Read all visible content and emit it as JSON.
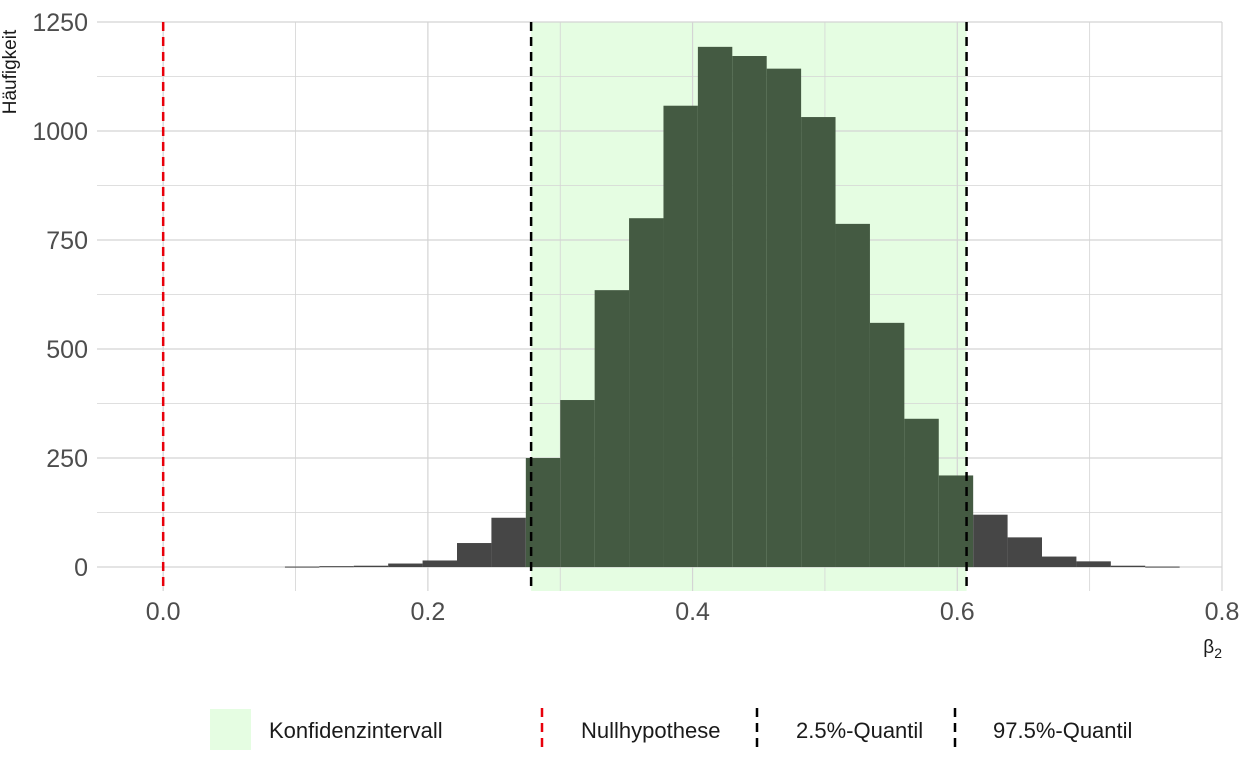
{
  "chart_data": {
    "type": "bar",
    "subtype": "histogram",
    "title": "",
    "xlabel": "β₂",
    "xlabel_base": "β",
    "xlabel_sub": "2",
    "ylabel": "Häufigkeit",
    "xlim": [
      -0.05,
      0.8
    ],
    "ylim": [
      -55,
      1250
    ],
    "x_ticks": [
      0.0,
      0.2,
      0.4,
      0.6,
      0.8
    ],
    "x_tick_labels": [
      "0.0",
      "0.2",
      "0.4",
      "0.6",
      "0.8"
    ],
    "y_ticks": [
      0,
      250,
      500,
      750,
      1000,
      1250
    ],
    "y_tick_labels": [
      "0",
      "250",
      "500",
      "750",
      "1000",
      "1250"
    ],
    "bin_width": 0.026,
    "bins": [
      {
        "x0": 0.092,
        "x1": 0.118,
        "count": 1
      },
      {
        "x0": 0.118,
        "x1": 0.144,
        "count": 2
      },
      {
        "x0": 0.144,
        "x1": 0.17,
        "count": 3
      },
      {
        "x0": 0.17,
        "x1": 0.196,
        "count": 8
      },
      {
        "x0": 0.196,
        "x1": 0.222,
        "count": 15
      },
      {
        "x0": 0.222,
        "x1": 0.248,
        "count": 55
      },
      {
        "x0": 0.248,
        "x1": 0.274,
        "count": 113
      },
      {
        "x0": 0.274,
        "x1": 0.3,
        "count": 250
      },
      {
        "x0": 0.3,
        "x1": 0.326,
        "count": 383
      },
      {
        "x0": 0.326,
        "x1": 0.352,
        "count": 635
      },
      {
        "x0": 0.352,
        "x1": 0.378,
        "count": 800
      },
      {
        "x0": 0.378,
        "x1": 0.404,
        "count": 1058
      },
      {
        "x0": 0.404,
        "x1": 0.43,
        "count": 1193
      },
      {
        "x0": 0.43,
        "x1": 0.456,
        "count": 1172
      },
      {
        "x0": 0.456,
        "x1": 0.482,
        "count": 1143
      },
      {
        "x0": 0.482,
        "x1": 0.508,
        "count": 1032
      },
      {
        "x0": 0.508,
        "x1": 0.534,
        "count": 787
      },
      {
        "x0": 0.534,
        "x1": 0.56,
        "count": 560
      },
      {
        "x0": 0.56,
        "x1": 0.586,
        "count": 340
      },
      {
        "x0": 0.586,
        "x1": 0.612,
        "count": 210
      },
      {
        "x0": 0.612,
        "x1": 0.638,
        "count": 120
      },
      {
        "x0": 0.638,
        "x1": 0.664,
        "count": 68
      },
      {
        "x0": 0.664,
        "x1": 0.69,
        "count": 24
      },
      {
        "x0": 0.69,
        "x1": 0.716,
        "count": 13
      },
      {
        "x0": 0.716,
        "x1": 0.742,
        "count": 3
      },
      {
        "x0": 0.742,
        "x1": 0.768,
        "count": 1
      }
    ],
    "confidence_interval": [
      0.278,
      0.607
    ],
    "null_hypothesis": 0.0,
    "quantile_025": 0.278,
    "quantile_975": 0.607,
    "grid": true,
    "legend_position": "bottom",
    "legend": [
      {
        "key": "ci",
        "label": "Konfidenzintervall"
      },
      {
        "key": "null",
        "label": "Nullhypothese"
      },
      {
        "key": "q025",
        "label": "2.5%-Quantil"
      },
      {
        "key": "q975",
        "label": "97.5%-Quantil"
      }
    ],
    "colors": {
      "ci_fill": "#e5fde2",
      "bar_inside": "#445a42",
      "bar_outside": "#464646",
      "null_line": "#e8000b",
      "quantile_line": "#000000",
      "grid": "#d4d4d4",
      "tick_text": "#4d4d4d"
    }
  }
}
